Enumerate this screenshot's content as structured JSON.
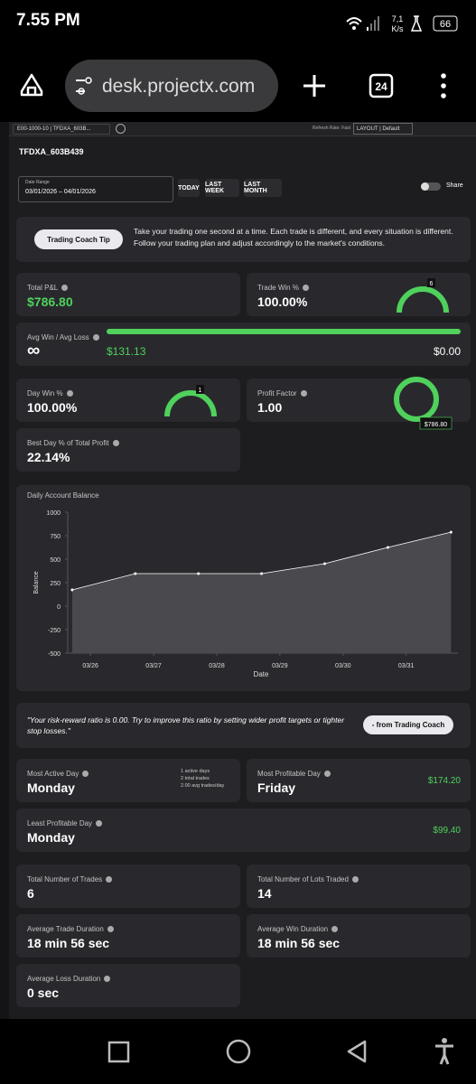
{
  "status_bar": {
    "time": "7.55 PM",
    "speed": "7,1",
    "speed_unit": "K/s",
    "battery": "66"
  },
  "browser": {
    "url": "desk.projectx.com",
    "tab_count": "24"
  },
  "toolbar": {
    "account": "E00-1000-10 | TFDXA_603B...",
    "refresh_rate": "Refresh Rate: Fast",
    "layout": "LAYOUT | Default"
  },
  "account_title": "TFDXA_603B439",
  "date_range": {
    "label": "Date Range",
    "value": "03/01/2026 – 04/01/2026",
    "buttons": [
      "TODAY",
      "LAST WEEK",
      "LAST MONTH"
    ],
    "share": "Share"
  },
  "coach_tip": {
    "button": "Trading Coach Tip",
    "text": "Take your trading one second at a time. Each trade is different, and every situation is different. Follow your trading plan and adjust accordingly to the market's conditions."
  },
  "stats": {
    "total_pnl": {
      "label": "Total P&L",
      "value": "$786.80"
    },
    "trade_win": {
      "label": "Trade Win %",
      "value": "100.00%",
      "badge": "6"
    },
    "avg_win_loss": {
      "label": "Avg Win / Avg Loss",
      "value": "∞",
      "avg_win": "$131.13",
      "avg_loss": "$0.00"
    },
    "day_win": {
      "label": "Day Win %",
      "value": "100.00%",
      "badge": "1"
    },
    "profit_factor": {
      "label": "Profit Factor",
      "value": "1.00",
      "badge": "$786.80"
    },
    "best_day": {
      "label": "Best Day % of Total Profit",
      "value": "22.14%"
    }
  },
  "balance_chart": {
    "type": "line",
    "title": "Daily Account Balance",
    "x_label": "Date",
    "y_label": "Balance",
    "x": [
      0,
      1,
      2,
      3,
      4,
      5,
      6
    ],
    "values": [
      173,
      346,
      346,
      346,
      452,
      625,
      787
    ],
    "color": "#ffffff",
    "xlim": [
      -0.07,
      6.11
    ],
    "xticks": [
      {
        "value": 0.29,
        "label": "03/26"
      },
      {
        "value": 1.29,
        "label": "03/27"
      },
      {
        "value": 2.29,
        "label": "03/28"
      },
      {
        "value": 3.29,
        "label": "03/29"
      },
      {
        "value": 4.29,
        "label": "03/30"
      },
      {
        "value": 5.29,
        "label": "03/31"
      }
    ],
    "ylim": [
      -500,
      1000
    ],
    "yticks": [
      -500,
      -250,
      0,
      250,
      500,
      750,
      1000
    ]
  },
  "coach_quote": {
    "text": "\"Your risk-reward ratio is 0.00. Try to improve this ratio by setting wider profit targets or tighter stop losses.\"",
    "button": "- from Trading Coach"
  },
  "days": {
    "most_active": {
      "label": "Most Active Day",
      "value": "Monday",
      "details": [
        "1 active days",
        "2 total trades",
        "2.00 avg trades/day"
      ]
    },
    "most_profitable": {
      "label": "Most Profitable Day",
      "value": "Friday",
      "amount": "$174.20"
    },
    "least_profitable": {
      "label": "Least Profitable Day",
      "value": "Monday",
      "amount": "$99.40"
    }
  },
  "totals": {
    "total_trades": {
      "label": "Total Number of Trades",
      "value": "6"
    },
    "total_lots": {
      "label": "Total Number of Lots Traded",
      "value": "14"
    },
    "avg_trade_duration": {
      "label": "Average Trade Duration",
      "value": "18 min 56 sec"
    },
    "avg_win_duration": {
      "label": "Average Win Duration",
      "value": "18 min 56 sec"
    },
    "avg_loss_duration": {
      "label": "Average Loss Duration",
      "value": "0 sec"
    }
  }
}
